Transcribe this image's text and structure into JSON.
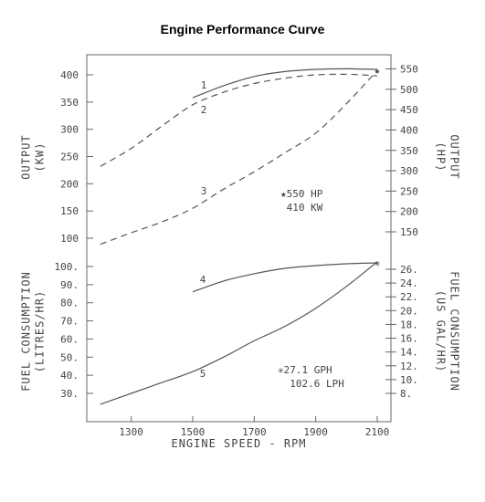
{
  "title": "Engine Performance Curve",
  "chart_data": {
    "type": "line",
    "x_axis": {
      "label": "ENGINE SPEED - RPM",
      "range": [
        1200,
        2100
      ],
      "ticks": [
        1300,
        1500,
        1700,
        1900,
        2100
      ],
      "tick_labels": [
        "1300",
        "1500",
        "1700",
        "1900",
        "2100"
      ]
    },
    "left_axis_upper": {
      "label_lines": [
        "OUTPUT",
        "(KW)"
      ],
      "unit": "KW",
      "ticks": [
        100,
        150,
        200,
        250,
        300,
        350,
        400
      ],
      "tick_labels": [
        "100",
        "150",
        "200",
        "250",
        "300",
        "350",
        "400"
      ]
    },
    "left_axis_lower": {
      "label_lines": [
        "FUEL CONSUMPTION",
        "(LITRES/HR)"
      ],
      "unit": "LITRES/HR",
      "ticks": [
        30,
        40,
        50,
        60,
        70,
        80,
        90,
        100
      ],
      "tick_labels": [
        "30.",
        "40.",
        "50.",
        "60.",
        "70.",
        "80.",
        "90.",
        "100."
      ]
    },
    "right_axis_upper": {
      "label_lines": [
        "OUTPUT",
        "(HP)"
      ],
      "unit": "HP",
      "ticks": [
        150,
        200,
        250,
        300,
        350,
        400,
        450,
        500,
        550
      ],
      "tick_labels": [
        "150",
        "200",
        "250",
        "300",
        "350",
        "400",
        "450",
        "500",
        "550"
      ]
    },
    "right_axis_lower": {
      "label_lines": [
        "FUEL CONSUMPTION",
        "(US GAL/HR)"
      ],
      "unit": "US GAL/HR",
      "ticks": [
        8,
        10,
        12,
        14,
        16,
        18,
        20,
        22,
        24,
        26
      ],
      "tick_labels": [
        "8.",
        "10.",
        "12.",
        "14.",
        "16.",
        "18.",
        "20.",
        "22.",
        "24.",
        "26."
      ]
    },
    "series": [
      {
        "label": "1",
        "axis": "upper",
        "style": "solid",
        "x": [
          1500,
          1600,
          1700,
          1800,
          1900,
          2000,
          2100
        ],
        "y": [
          358,
          380,
          397,
          406,
          410,
          411,
          410
        ]
      },
      {
        "label": "2",
        "axis": "upper",
        "style": "dashed",
        "x": [
          1200,
          1300,
          1400,
          1500,
          1600,
          1700,
          1800,
          1900,
          2000,
          2050,
          2100
        ],
        "y": [
          232,
          265,
          306,
          345,
          368,
          384,
          394,
          400,
          401,
          400,
          398
        ]
      },
      {
        "label": "3",
        "axis": "upper",
        "style": "dashed",
        "x": [
          1200,
          1300,
          1400,
          1500,
          1600,
          1700,
          1800,
          1900,
          2000,
          2100
        ],
        "y": [
          89,
          110,
          130,
          155,
          190,
          222,
          257,
          293,
          347,
          408
        ]
      },
      {
        "label": "4",
        "axis": "lower",
        "style": "solid",
        "x": [
          1500,
          1600,
          1700,
          1800,
          1900,
          2000,
          2100
        ],
        "y": [
          86,
          92,
          96,
          99,
          100.5,
          101.5,
          102
        ]
      },
      {
        "label": "5",
        "axis": "lower",
        "style": "solid",
        "x": [
          1200,
          1300,
          1400,
          1500,
          1600,
          1700,
          1800,
          1900,
          2000,
          2100
        ],
        "y": [
          24,
          30,
          36,
          42,
          50,
          59,
          67,
          77,
          89,
          102.6
        ]
      }
    ],
    "markers": [
      {
        "symbol": "★",
        "x": 2100,
        "y": 410,
        "axis": "upper"
      },
      {
        "symbol": "✳",
        "x": 2100,
        "y": 102.6,
        "axis": "lower"
      }
    ],
    "annotations": [
      {
        "lines": [
          "★550 HP",
          " 410 KW"
        ]
      },
      {
        "lines": [
          "✳27.1 GPH",
          "  102.6 LPH"
        ]
      }
    ]
  }
}
